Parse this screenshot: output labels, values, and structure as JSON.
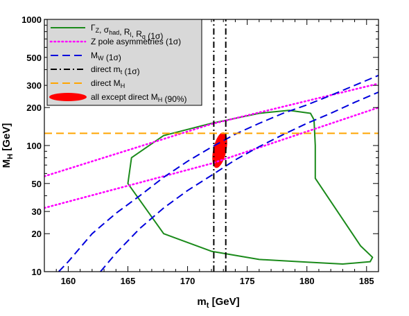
{
  "chart_data": {
    "type": "line",
    "xlabel": "m",
    "xlabel_sub": "t",
    "xlabel_unit": " [GeV]",
    "ylabel": "M",
    "ylabel_sub": "H",
    "ylabel_unit": " [GeV]",
    "x_scale": "linear",
    "y_scale": "log",
    "xlim": [
      158,
      186
    ],
    "ylim": [
      10,
      1000
    ],
    "x_ticks": [
      160,
      165,
      170,
      175,
      180,
      185
    ],
    "y_ticks": [
      10,
      20,
      30,
      50,
      100,
      200,
      300,
      500,
      1000
    ],
    "grid": false,
    "legend_position": "top-left",
    "legend": [
      {
        "name": "Γ_Z, σ_had, R_l, R_q (1σ)",
        "color": "#1a8a1a",
        "style": "solid"
      },
      {
        "name": "Z pole asymmetries (1σ)",
        "color": "#ff00ff",
        "style": "dotted"
      },
      {
        "name": "M_W (1σ)",
        "color": "#0000dd",
        "style": "dashed"
      },
      {
        "name": "direct m_t (1σ)",
        "color": "#000000",
        "style": "dashdot"
      },
      {
        "name": "direct M_H",
        "color": "#ffa500",
        "style": "dashed"
      },
      {
        "name": "all except direct M_H (90%)",
        "color": "#ff0000",
        "style": "fill"
      }
    ],
    "series": [
      {
        "key": "zwidth",
        "color": "#1a8a1a",
        "style": "solid",
        "x": [
          178.5,
          180.3,
          180.6,
          180.7,
          180.7,
          184.5,
          185.5,
          185.3,
          183.0,
          180.0,
          176.0,
          172.0,
          168.0,
          165.0,
          165.3,
          168.0,
          172.0,
          176.0,
          178.5
        ],
        "y": [
          190,
          180,
          160,
          100,
          55,
          16,
          13,
          12,
          11.5,
          11.9,
          12.5,
          14.5,
          20,
          50,
          80,
          120,
          150,
          180,
          190
        ]
      },
      {
        "key": "zpole_upper",
        "color": "#ff00ff",
        "style": "dotted",
        "x": [
          158,
          172,
          186
        ],
        "y": [
          57,
          148,
          310
        ]
      },
      {
        "key": "zpole_lower",
        "color": "#ff00ff",
        "style": "dotted",
        "x": [
          158,
          172,
          186
        ],
        "y": [
          32,
          72,
          200
        ]
      },
      {
        "key": "mw_upper",
        "color": "#0000dd",
        "style": "dashed",
        "x": [
          159.2,
          160,
          162,
          164,
          166,
          168,
          170,
          172,
          174,
          176,
          178,
          180,
          182,
          184,
          186
        ],
        "y": [
          10,
          12,
          20,
          29,
          40,
          56,
          75,
          97,
          123,
          150,
          180,
          210,
          250,
          300,
          360
        ]
      },
      {
        "key": "mw_lower",
        "color": "#0000dd",
        "style": "dashed",
        "x": [
          162.7,
          164,
          166,
          168,
          170,
          172,
          174,
          176,
          178,
          180,
          182,
          184,
          186
        ],
        "y": [
          10,
          14,
          22,
          32,
          44,
          58,
          77,
          98,
          122,
          150,
          180,
          220,
          265
        ]
      },
      {
        "key": "mt_low",
        "color": "#000000",
        "style": "dashdot",
        "x": [
          172.2,
          172.2
        ],
        "y": [
          10,
          1000
        ]
      },
      {
        "key": "mt_high",
        "color": "#000000",
        "style": "dashdot",
        "x": [
          173.2,
          173.2
        ],
        "y": [
          10,
          1000
        ]
      },
      {
        "key": "mh_direct",
        "color": "#ffa500",
        "style": "dashed",
        "x": [
          158,
          186
        ],
        "y": [
          125,
          125
        ]
      }
    ],
    "ellipse_90": {
      "color": "#ff0000",
      "center_mt": 172.7,
      "center_mh": 92,
      "mt_halfwidth": 0.55,
      "mh_low": 66,
      "mh_high": 128
    }
  }
}
